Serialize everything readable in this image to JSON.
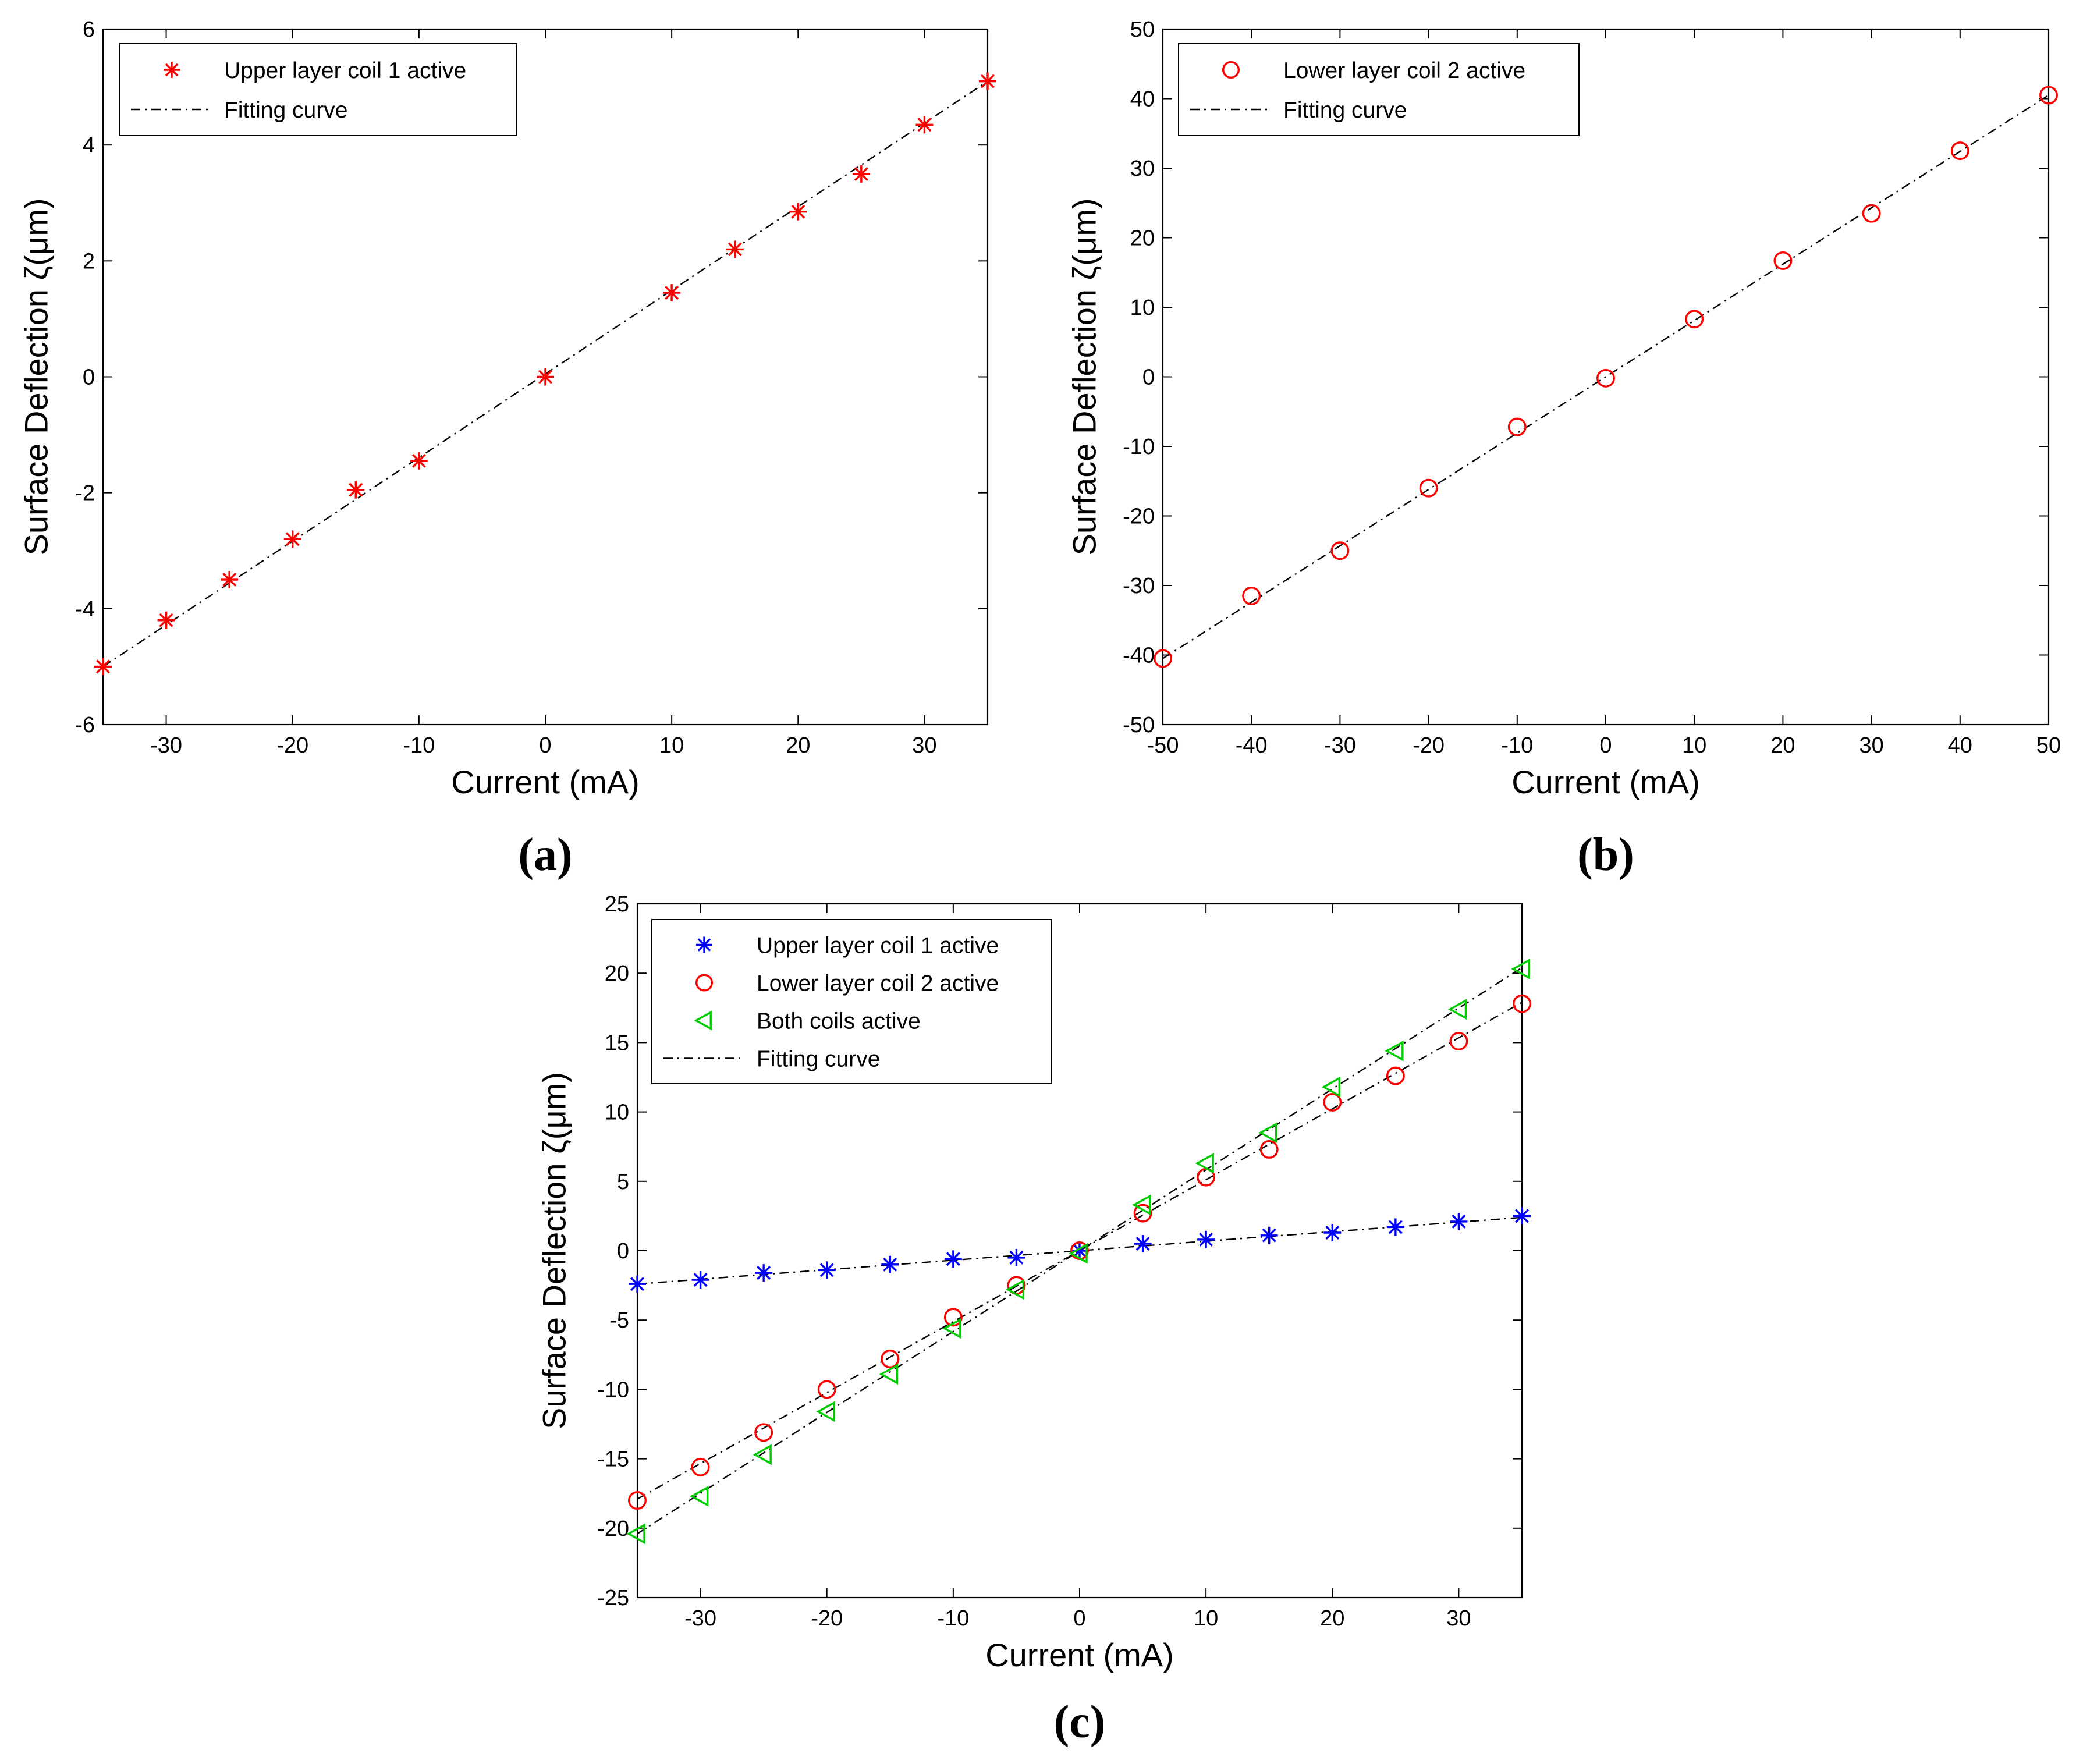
{
  "figure": {
    "background": "#ffffff",
    "axis_color": "#000000",
    "fit_color": "#000000"
  },
  "chart_data": [
    {
      "id": "a",
      "type": "scatter",
      "panel_label": "a",
      "xlabel": "Current (mA)",
      "ylabel": "Surface Deflection ζ(μm)",
      "xlim": [
        -35,
        35
      ],
      "ylim": [
        -6,
        6
      ],
      "xticks": [
        -30,
        -20,
        -10,
        0,
        10,
        20,
        30
      ],
      "xtick_labels": [
        "-30",
        "-20",
        "-10",
        "0",
        "10",
        "20",
        "30"
      ],
      "yticks": [
        -6,
        -4,
        -2,
        0,
        2,
        4,
        6
      ],
      "ytick_labels": [
        "-6",
        "-4",
        "-2",
        "0",
        "2",
        "4",
        "6"
      ],
      "grid": false,
      "legend_position": "top-left",
      "legend_entries": [
        {
          "label": "Upper layer coil 1 active",
          "marker": "asterisk",
          "color": "#ff0000",
          "line": false
        },
        {
          "label": "Fitting curve",
          "marker": "none",
          "color": "#000000",
          "line": true
        }
      ],
      "series": [
        {
          "name": "Upper layer coil 1 active",
          "marker": "asterisk",
          "color": "#ff0000",
          "x": [
            -35,
            -30,
            -25,
            -20,
            -15,
            -10,
            0,
            10,
            15,
            20,
            25,
            30,
            35
          ],
          "y": [
            -5.0,
            -4.2,
            -3.5,
            -2.8,
            -1.95,
            -1.45,
            0.0,
            1.45,
            2.2,
            2.85,
            3.5,
            4.35,
            5.1
          ]
        }
      ],
      "fits": [
        {
          "x": [
            -35,
            35
          ],
          "y": [
            -5.0,
            5.1
          ]
        }
      ]
    },
    {
      "id": "b",
      "type": "scatter",
      "panel_label": "b",
      "xlabel": "Current (mA)",
      "ylabel": "Surface Deflection ζ(μm)",
      "xlim": [
        -50,
        50
      ],
      "ylim": [
        -50,
        50
      ],
      "xticks": [
        -50,
        -40,
        -30,
        -20,
        -10,
        0,
        10,
        20,
        30,
        40,
        50
      ],
      "xtick_labels": [
        "-50",
        "-40",
        "-30",
        "-20",
        "-10",
        "0",
        "10",
        "20",
        "30",
        "40",
        "50"
      ],
      "yticks": [
        -50,
        -40,
        -30,
        -20,
        -10,
        0,
        10,
        20,
        30,
        40,
        50
      ],
      "ytick_labels": [
        "-50",
        "-40",
        "-30",
        "-20",
        "-10",
        "0",
        "10",
        "20",
        "30",
        "40",
        "50"
      ],
      "grid": false,
      "legend_position": "top-left",
      "legend_entries": [
        {
          "label": "Lower layer coil 2 active",
          "marker": "circle",
          "color": "#ff0000",
          "line": false
        },
        {
          "label": "Fitting curve",
          "marker": "none",
          "color": "#000000",
          "line": true
        }
      ],
      "series": [
        {
          "name": "Lower layer coil 2 active",
          "marker": "circle",
          "color": "#ff0000",
          "x": [
            -50,
            -40,
            -30,
            -20,
            -10,
            0,
            10,
            20,
            30,
            40,
            50
          ],
          "y": [
            -40.5,
            -31.5,
            -25.0,
            -16.0,
            -7.2,
            -0.2,
            8.3,
            16.7,
            23.5,
            32.5,
            40.5
          ]
        }
      ],
      "fits": [
        {
          "x": [
            -50,
            50
          ],
          "y": [
            -40.5,
            40.5
          ]
        }
      ]
    },
    {
      "id": "c",
      "type": "scatter",
      "panel_label": "c",
      "xlabel": "Current (mA)",
      "ylabel": "Surface Deflection ζ(μm)",
      "xlim": [
        -35,
        35
      ],
      "ylim": [
        -25,
        25
      ],
      "xticks": [
        -30,
        -20,
        -10,
        0,
        10,
        20,
        30
      ],
      "xtick_labels": [
        "-30",
        "-20",
        "-10",
        "0",
        "10",
        "20",
        "30"
      ],
      "yticks": [
        -25,
        -20,
        -15,
        -10,
        -5,
        0,
        5,
        10,
        15,
        20,
        25
      ],
      "ytick_labels": [
        "-25",
        "-20",
        "-15",
        "-10",
        "-5",
        "0",
        "5",
        "10",
        "15",
        "20",
        "25"
      ],
      "grid": false,
      "legend_position": "top-left",
      "legend_entries": [
        {
          "label": "Upper layer coil 1 active",
          "marker": "asterisk",
          "color": "#0000ff",
          "line": false
        },
        {
          "label": "Lower layer coil 2 active",
          "marker": "circle",
          "color": "#ff0000",
          "line": false
        },
        {
          "label": "Both coils active",
          "marker": "triangle-left",
          "color": "#00cc00",
          "line": false
        },
        {
          "label": "Fitting curve",
          "marker": "none",
          "color": "#000000",
          "line": true
        }
      ],
      "series": [
        {
          "name": "Upper layer coil 1 active",
          "marker": "asterisk",
          "color": "#0000ff",
          "x": [
            -35,
            -30,
            -25,
            -20,
            -15,
            -10,
            -5,
            0,
            5,
            10,
            15,
            20,
            25,
            30,
            35
          ],
          "y": [
            -2.4,
            -2.1,
            -1.6,
            -1.4,
            -1.0,
            -0.6,
            -0.5,
            0.0,
            0.5,
            0.8,
            1.1,
            1.3,
            1.7,
            2.1,
            2.5
          ]
        },
        {
          "name": "Lower layer coil 2 active",
          "marker": "circle",
          "color": "#ff0000",
          "x": [
            -35,
            -30,
            -25,
            -20,
            -15,
            -10,
            -5,
            0,
            5,
            10,
            15,
            20,
            25,
            30,
            35
          ],
          "y": [
            -18.0,
            -15.6,
            -13.1,
            -10.0,
            -7.8,
            -4.8,
            -2.5,
            0.0,
            2.7,
            5.3,
            7.3,
            10.7,
            12.6,
            15.1,
            17.8
          ]
        },
        {
          "name": "Both coils active",
          "marker": "triangle-left",
          "color": "#00cc00",
          "x": [
            -35,
            -30,
            -25,
            -20,
            -15,
            -10,
            -5,
            0,
            5,
            10,
            15,
            20,
            25,
            30,
            35
          ],
          "y": [
            -20.4,
            -17.7,
            -14.7,
            -11.6,
            -8.9,
            -5.6,
            -2.8,
            -0.2,
            3.3,
            6.3,
            8.5,
            11.8,
            14.4,
            17.4,
            20.3
          ]
        }
      ],
      "fits": [
        {
          "x": [
            -35,
            35
          ],
          "y": [
            -2.4,
            2.4
          ]
        },
        {
          "x": [
            -35,
            35
          ],
          "y": [
            -17.9,
            17.9
          ]
        },
        {
          "x": [
            -35,
            35
          ],
          "y": [
            -20.4,
            20.4
          ]
        }
      ]
    }
  ]
}
